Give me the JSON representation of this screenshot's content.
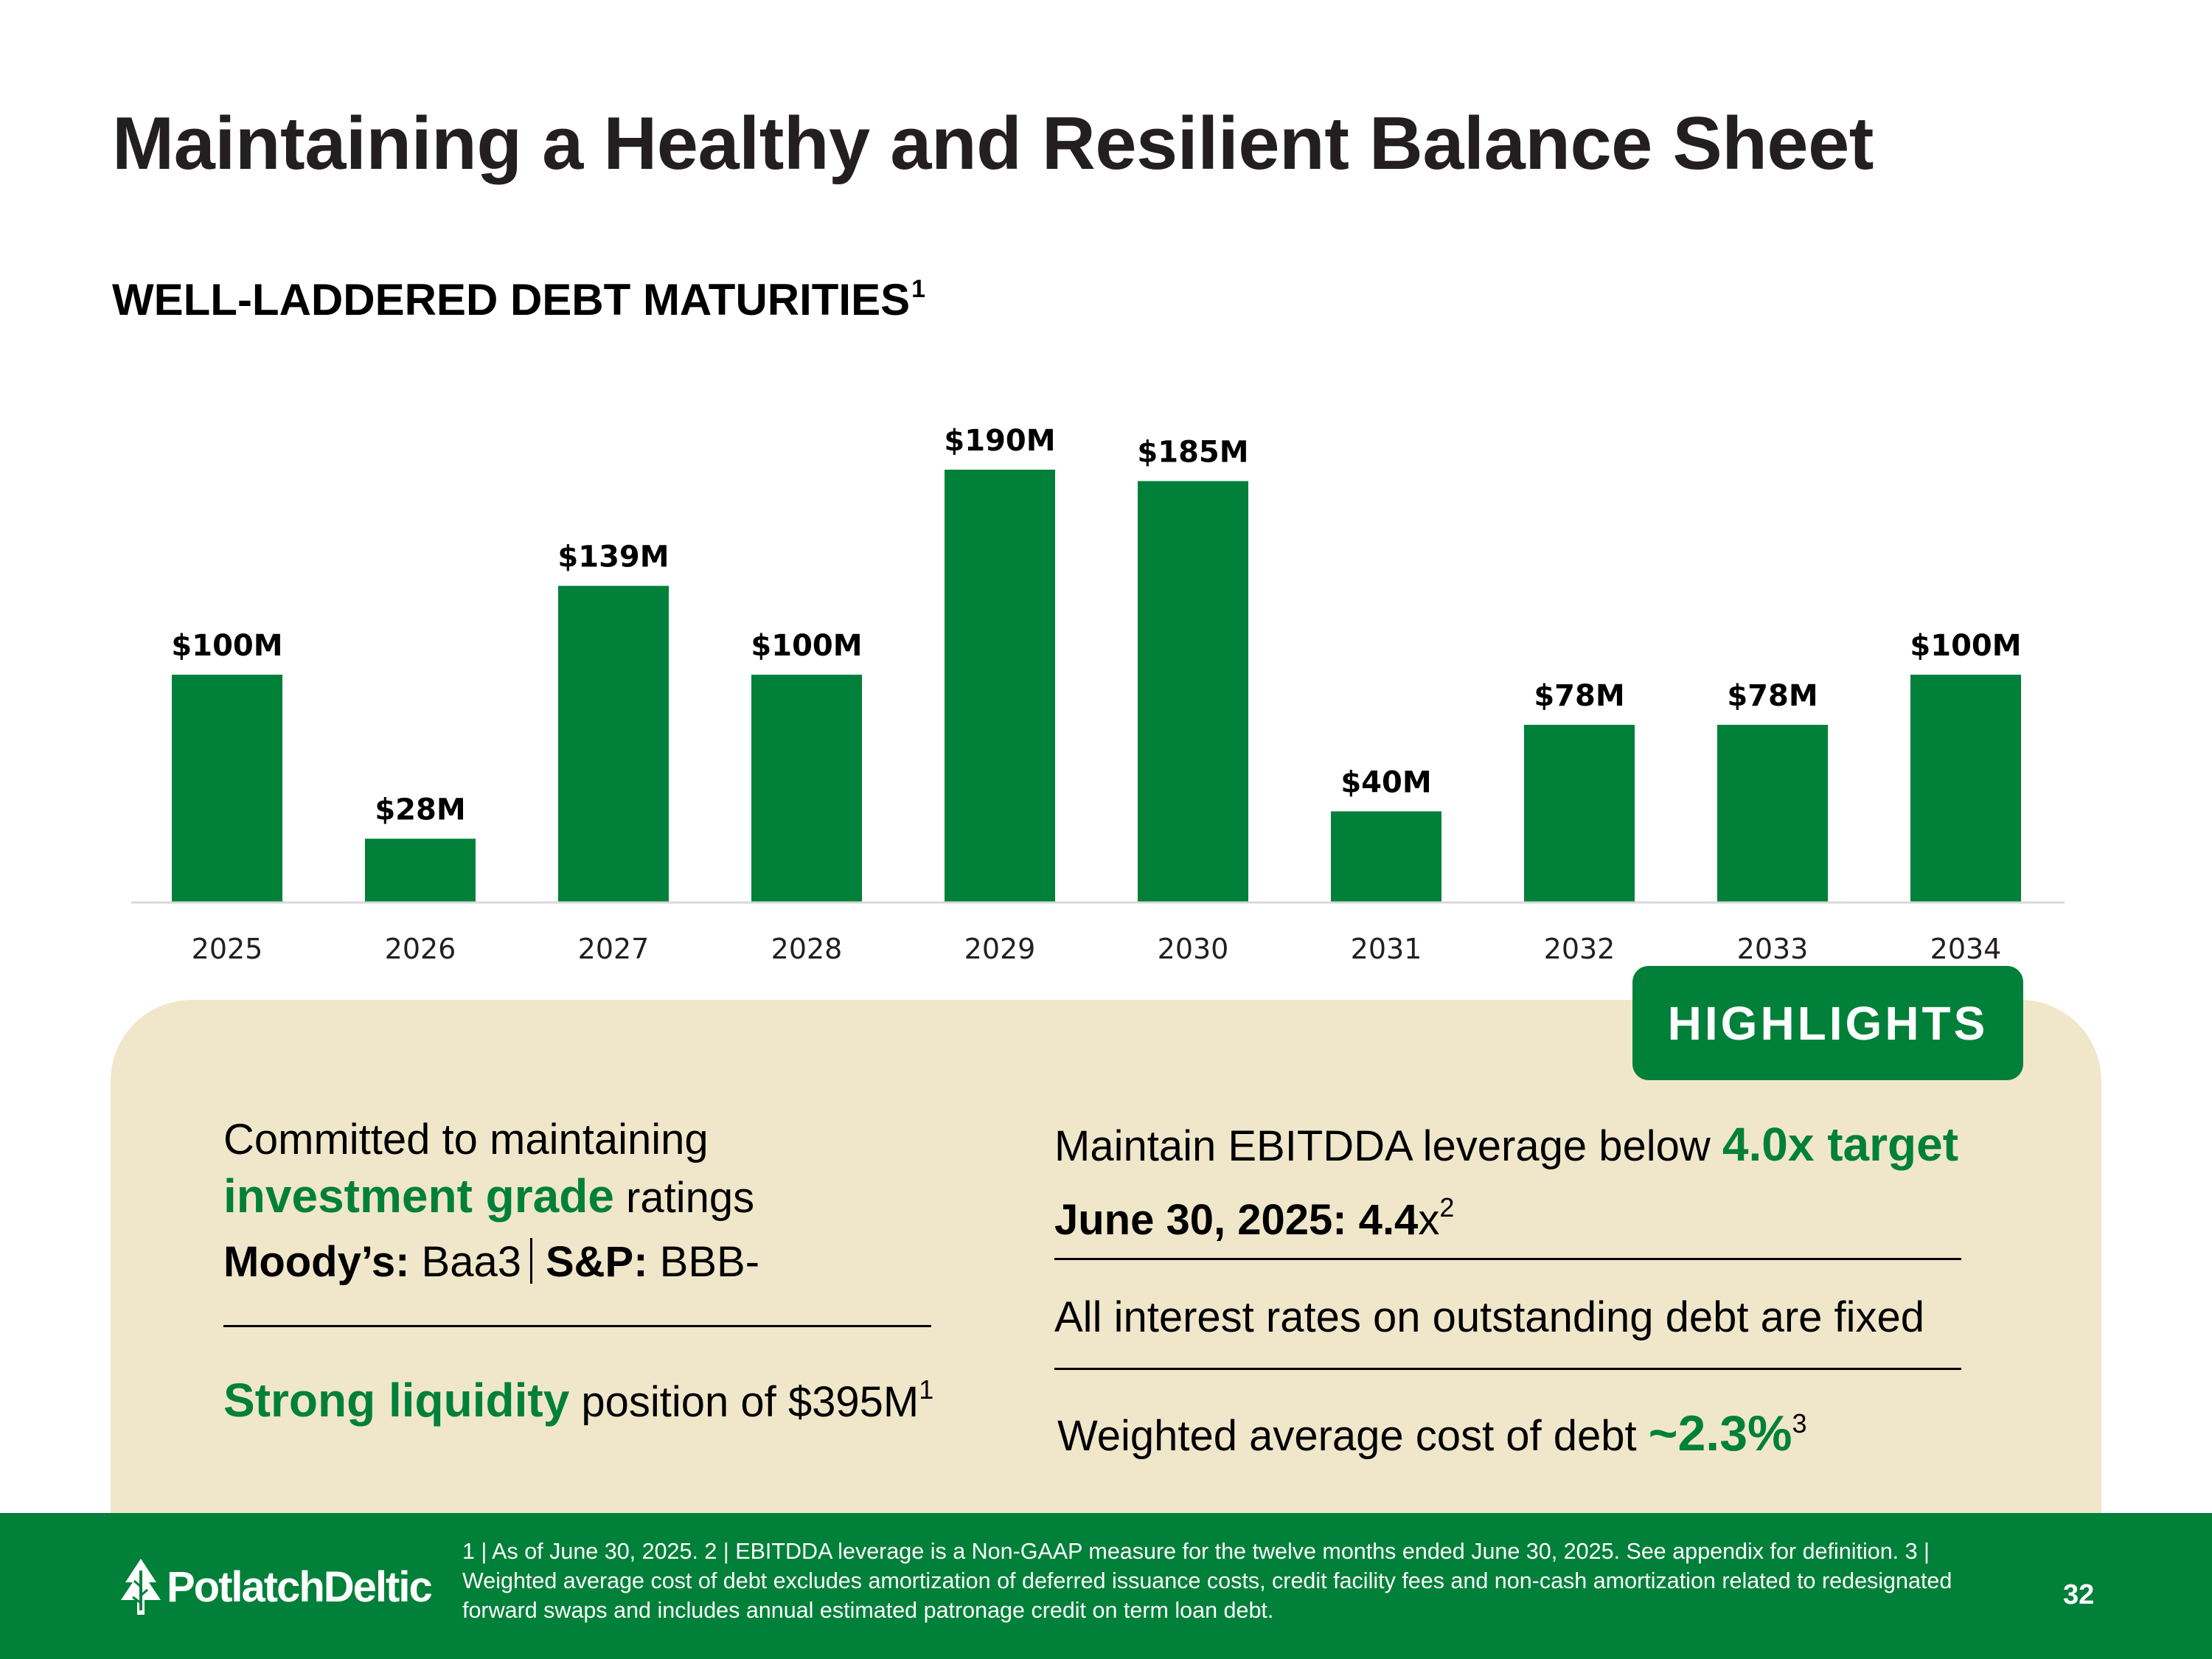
{
  "title": "Maintaining a Healthy and Resilient Balance Sheet",
  "subtitle": {
    "text": "WELL-LADDERED DEBT MATURITIES",
    "sup": "1"
  },
  "colors": {
    "brand_green": "#008039",
    "panel_bg": "#f0e7cb",
    "text": "#231f20"
  },
  "chart_data": {
    "type": "bar",
    "title": "WELL-LADDERED DEBT MATURITIES",
    "categories": [
      "2025",
      "2026",
      "2027",
      "2028",
      "2029",
      "2030",
      "2031",
      "2032",
      "2033",
      "2034"
    ],
    "values": [
      100,
      28,
      139,
      100,
      190,
      185,
      40,
      78,
      78,
      100
    ],
    "labels": [
      "$100M",
      "$28M",
      "$139M",
      "$100M",
      "$190M",
      "$185M",
      "$40M",
      "$78M",
      "$78M",
      "$100M"
    ],
    "unit": "$M",
    "ylim": [
      0,
      190
    ],
    "grid": false,
    "xlabel": "",
    "ylabel": ""
  },
  "highlights": {
    "tab_label": "HIGHLIGHTS",
    "rating": {
      "line1": "Committed to maintaining",
      "emphasis": "investment grade",
      "line2_rest": " ratings",
      "moodys_label": "Moody’s:",
      "moodys_value": " Baa3",
      "sp_label": "S&P:",
      "sp_value": " BBB-"
    },
    "liquidity": {
      "emphasis": "Strong liquidity",
      "rest": " position of $395M",
      "sup": "1"
    },
    "leverage": {
      "text": "Maintain EBITDDA leverage below ",
      "emphasis": "4.0x target",
      "date_label": "June 30, 2025: 4.4",
      "date_suffix": "x",
      "sup": "2"
    },
    "fixed_rates": "All interest rates on outstanding debt are fixed",
    "cost": {
      "text": "Weighted average cost of debt ",
      "emphasis": "~2.3%",
      "sup": "3"
    }
  },
  "footer": {
    "logo_text": "PotlatchDeltic",
    "logo_icon": "tree-icon",
    "footnote": "1 | As of June 30, 2025.  2 | EBITDDA leverage is a Non-GAAP measure for the twelve months ended June 30, 2025. See appendix for definition.  3 | Weighted average cost of debt excludes amortization of deferred issuance costs, credit facility fees and non-cash amortization related to redesignated forward swaps and includes annual estimated patronage credit on term loan debt.",
    "page_number": "32"
  }
}
